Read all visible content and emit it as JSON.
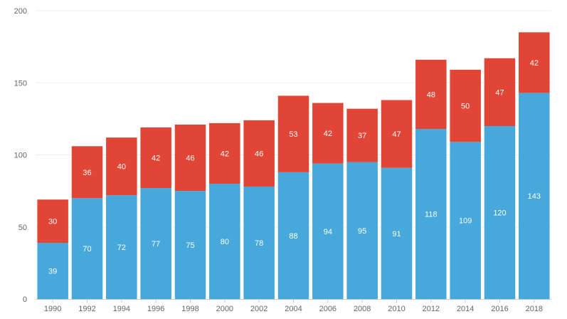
{
  "chart_data": {
    "type": "bar",
    "stacked": true,
    "title": "",
    "xlabel": "",
    "ylabel": "",
    "categories": [
      "1990",
      "1992",
      "1994",
      "1996",
      "1998",
      "2000",
      "2002",
      "2004",
      "2006",
      "2008",
      "2010",
      "2012",
      "2014",
      "2016",
      "2018"
    ],
    "series": [
      {
        "values": [
          39,
          70,
          72,
          77,
          75,
          80,
          78,
          88,
          94,
          95,
          91,
          118,
          109,
          120,
          143
        ],
        "color": "#47a8dc"
      },
      {
        "values": [
          30,
          36,
          40,
          42,
          46,
          42,
          46,
          53,
          42,
          37,
          47,
          48,
          50,
          47,
          42
        ],
        "color": "#e04535"
      }
    ],
    "ylim": [
      0,
      200
    ],
    "yticks": [
      0,
      50,
      100,
      150,
      200
    ],
    "grid": true,
    "legend": "none"
  }
}
